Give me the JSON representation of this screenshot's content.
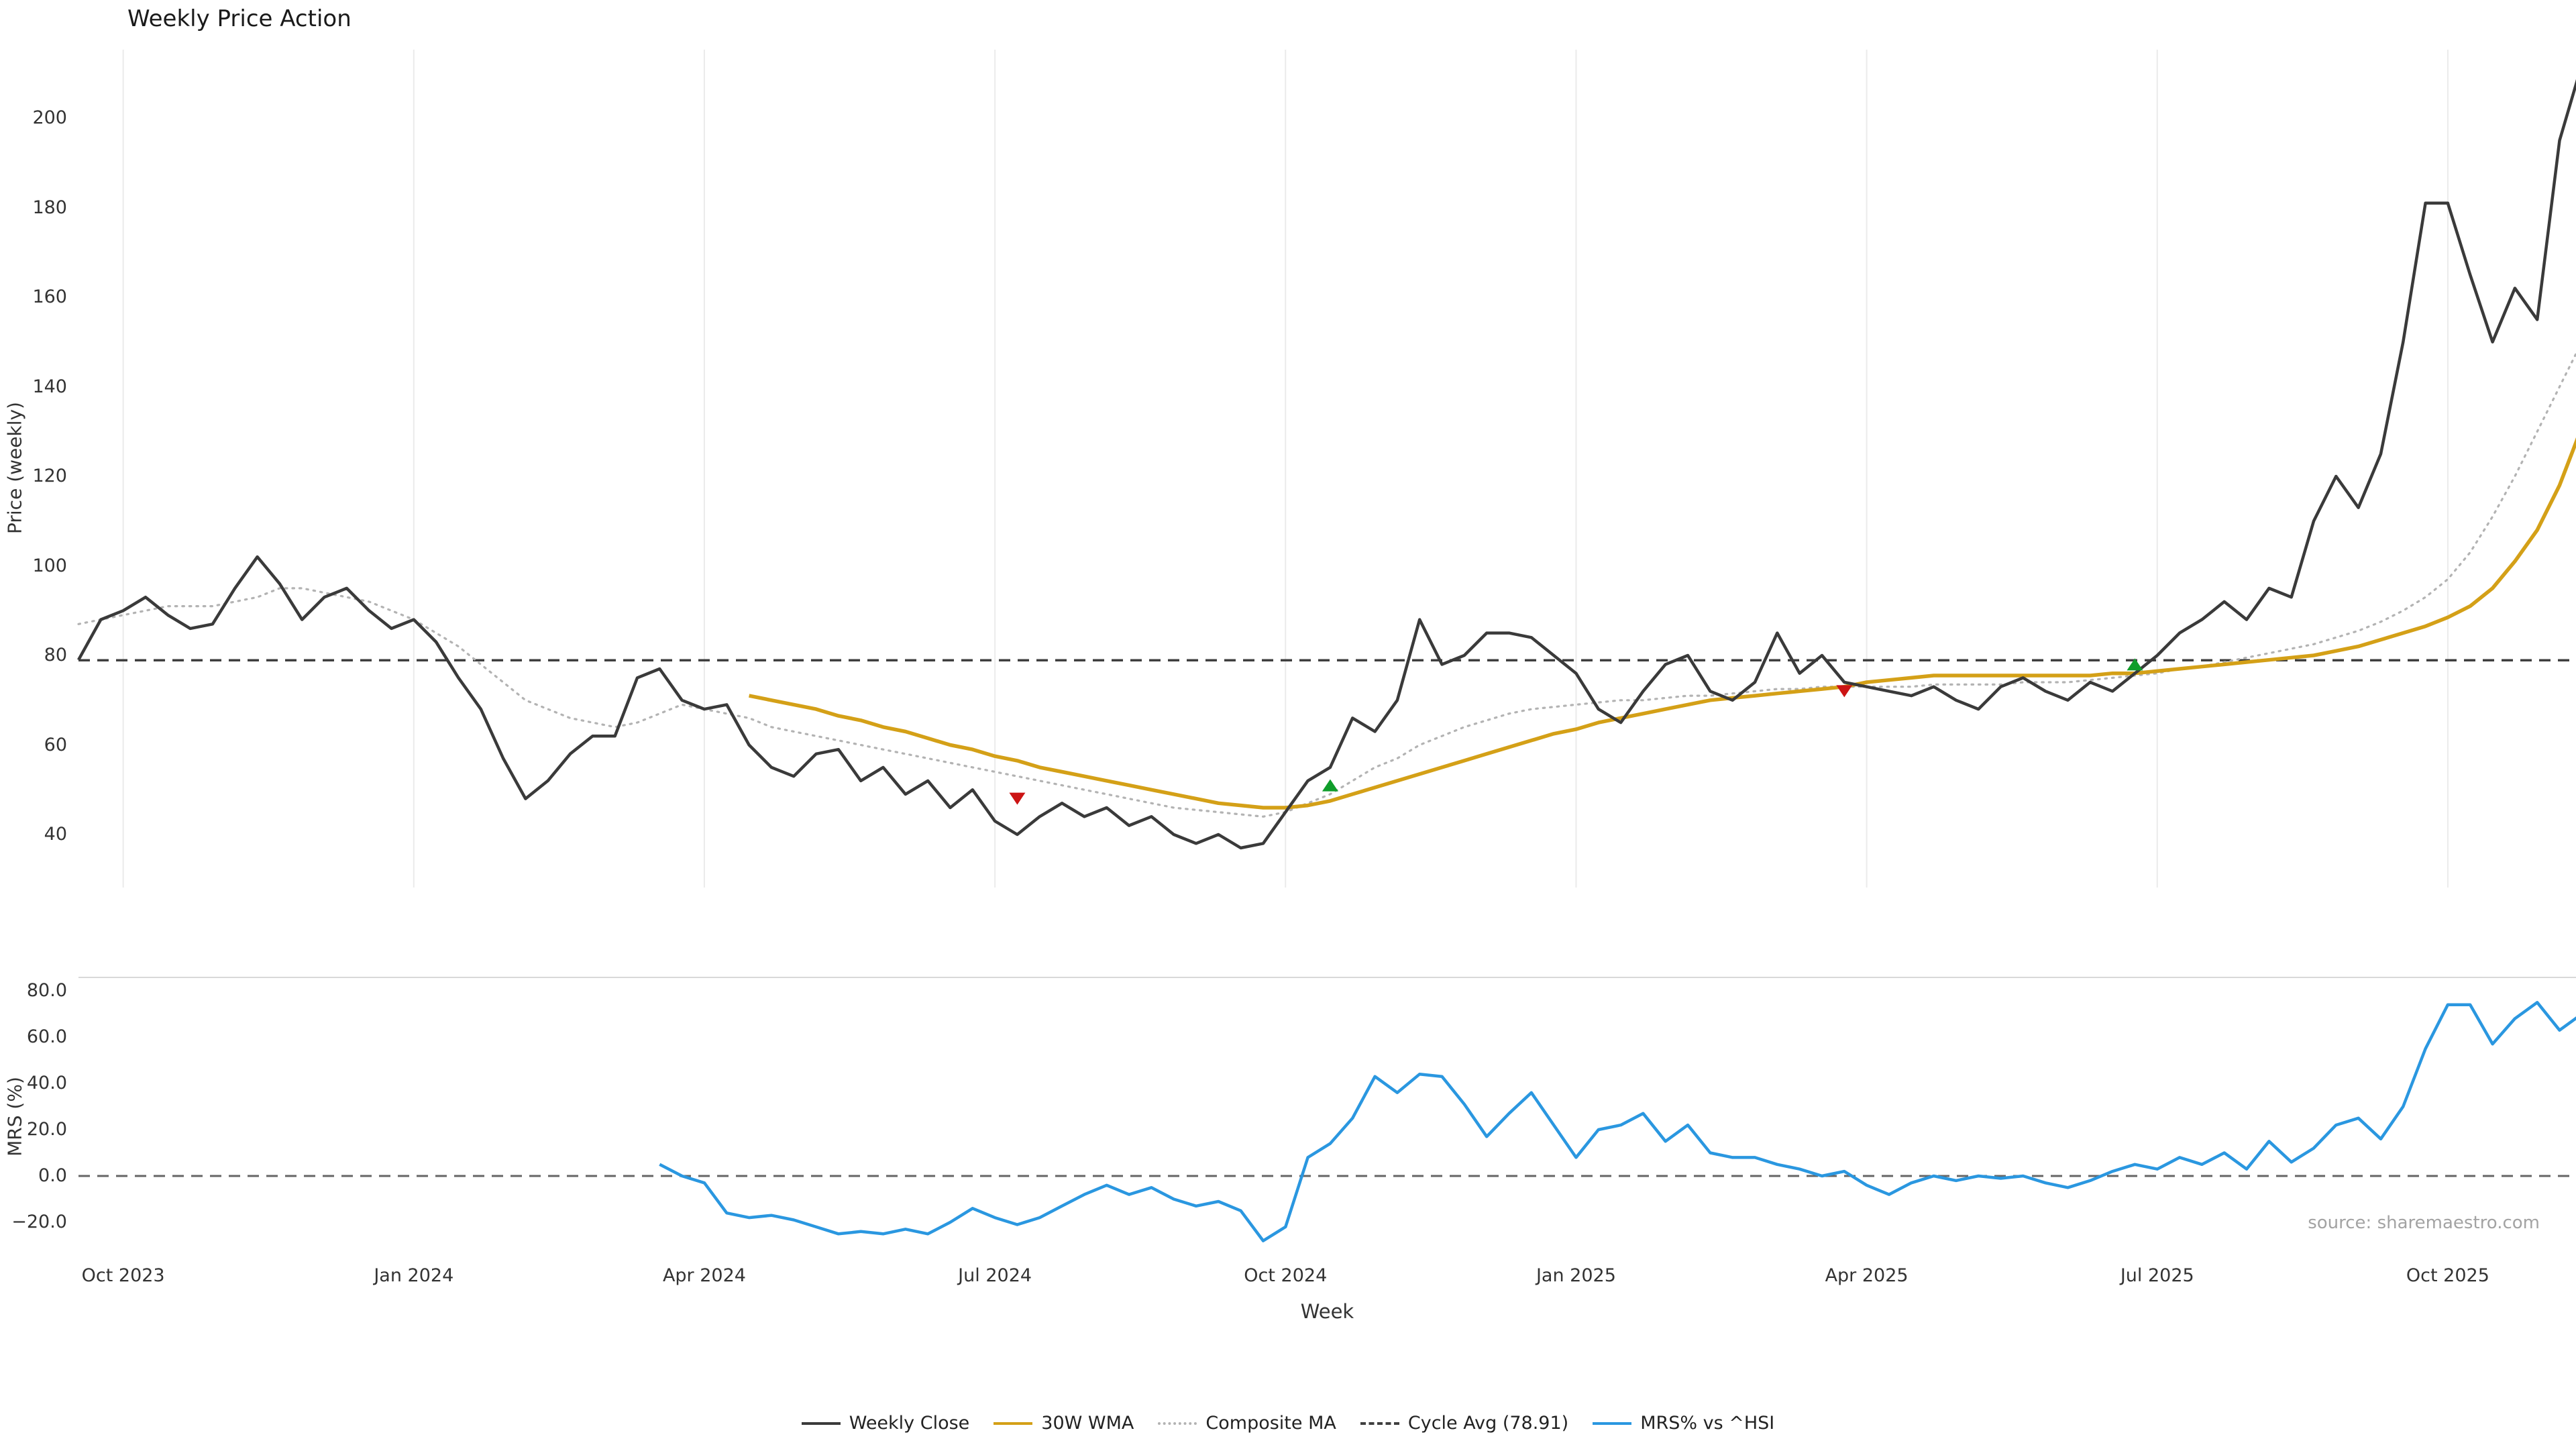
{
  "title": "Weekly Price Action",
  "source": "source: sharemaestro.com",
  "colors": {
    "weekly_close": "#3a3a3a",
    "wma_30w": "#d4a017",
    "composite_ma": "#b3b3b3",
    "cycle_avg": "#3f3f3f",
    "mrs": "#2a97e0",
    "buy_marker": "#0f9d2a",
    "sell_marker": "#cc1414",
    "grid": "#ebebeb",
    "spine": "#d8d8d8",
    "zero_line": "#666666"
  },
  "legend": [
    {
      "label": "Weekly Close",
      "style": "solid",
      "color_key": "weekly_close"
    },
    {
      "label": "30W WMA",
      "style": "solid",
      "color_key": "wma_30w"
    },
    {
      "label": "Composite MA",
      "style": "dotted",
      "color_key": "composite_ma"
    },
    {
      "label": "Cycle Avg (78.91)",
      "style": "dashed",
      "color_key": "cycle_avg"
    },
    {
      "label": "MRS% vs ^HSI",
      "style": "solid",
      "color_key": "mrs"
    }
  ],
  "x_axis": {
    "label": "Week",
    "tick_labels": [
      "Oct 2023",
      "Jan 2024",
      "Apr 2024",
      "Jul 2024",
      "Oct 2024",
      "Jan 2025",
      "Apr 2025",
      "Jul 2025",
      "Oct 2025"
    ],
    "tick_weeks": [
      2,
      15,
      28,
      41,
      54,
      67,
      80,
      93,
      106
    ],
    "week_range": [
      0,
      112
    ]
  },
  "chart_data": [
    {
      "type": "line",
      "panel": "price",
      "title": "Weekly Price Action",
      "ylabel": "Price (weekly)",
      "ylim": [
        28,
        215
      ],
      "yticks": [
        200,
        180,
        160,
        140,
        120,
        100,
        80,
        60,
        40
      ],
      "ytick_labels": [
        "200",
        "180",
        "160",
        "140",
        "120",
        "100",
        "80",
        "60",
        "40"
      ],
      "grid": "vertical",
      "cycle_avg": 78.91,
      "series": [
        {
          "name": "Weekly Close",
          "start_week": 0,
          "color_key": "weekly_close",
          "style": "solid",
          "values": [
            79,
            88,
            90,
            93,
            89,
            86,
            87,
            95,
            102,
            96,
            88,
            93,
            95,
            90,
            86,
            88,
            83,
            75,
            68,
            57,
            48,
            52,
            58,
            62,
            62,
            75,
            77,
            70,
            68,
            69,
            60,
            55,
            53,
            58,
            59,
            52,
            55,
            49,
            52,
            46,
            50,
            43,
            40,
            44,
            47,
            44,
            46,
            42,
            44,
            40,
            38,
            40,
            37,
            38,
            45,
            52,
            55,
            66,
            63,
            70,
            88,
            78,
            80,
            85,
            85,
            84,
            80,
            76,
            68,
            65,
            72,
            78,
            80,
            72,
            70,
            74,
            85,
            76,
            80,
            74,
            73,
            72,
            71,
            73,
            70,
            68,
            73,
            75,
            72,
            70,
            74,
            72,
            76,
            80,
            85,
            88,
            92,
            88,
            95,
            93,
            110,
            120,
            113,
            125,
            150,
            181,
            181,
            165,
            150,
            162,
            155,
            195,
            212
          ]
        },
        {
          "name": "30W WMA",
          "start_week": 30,
          "color_key": "wma_30w",
          "style": "solid",
          "values": [
            71,
            70,
            69,
            68,
            66.5,
            65.5,
            64,
            63,
            61.5,
            60,
            59,
            57.5,
            56.5,
            55,
            54,
            53,
            52,
            51,
            50,
            49,
            48,
            47,
            46.5,
            46,
            46,
            46.5,
            47.5,
            49,
            50.5,
            52,
            53.5,
            55,
            56.5,
            58,
            59.5,
            61,
            62.5,
            63.5,
            65,
            66,
            67,
            68,
            69,
            70,
            70.5,
            71,
            71.5,
            72,
            72.5,
            73,
            74,
            74.5,
            75,
            75.5,
            75.5,
            75.5,
            75.5,
            75.5,
            75.5,
            75.5,
            75.5,
            76,
            76,
            76.5,
            77,
            77.5,
            78,
            78.5,
            79,
            79.5,
            80,
            81,
            82,
            83.5,
            85,
            86.5,
            88.5,
            91,
            95,
            101,
            108,
            118,
            131
          ]
        },
        {
          "name": "Composite MA",
          "start_week": 0,
          "color_key": "composite_ma",
          "style": "dotted",
          "values": [
            87,
            88,
            89,
            90,
            91,
            91,
            91,
            92,
            93,
            95,
            95,
            94,
            93,
            92,
            90,
            88,
            85,
            82,
            78,
            74,
            70,
            68,
            66,
            65,
            64,
            65,
            67,
            69,
            68,
            67,
            66,
            64,
            63,
            62,
            61,
            60,
            59,
            58,
            57,
            56,
            55,
            54,
            53,
            52,
            51,
            50,
            49,
            48,
            47,
            46,
            45.5,
            45,
            44.5,
            44,
            45,
            47,
            49,
            52,
            55,
            57,
            60,
            62,
            64,
            65.5,
            67,
            68,
            68.5,
            69,
            69.5,
            70,
            70,
            70.5,
            71,
            71,
            71.5,
            72,
            72.5,
            72.5,
            73,
            73,
            73,
            73,
            73,
            73.5,
            73.5,
            73.5,
            73.5,
            74,
            74,
            74,
            74.5,
            75,
            75.5,
            76,
            77,
            77.5,
            78.5,
            79.5,
            80.5,
            81.5,
            82.5,
            84,
            85.5,
            87.5,
            90,
            93,
            97,
            103,
            111,
            120,
            130,
            140,
            150
          ]
        }
      ],
      "signal_markers": [
        {
          "week": 42,
          "value": 48,
          "type": "sell"
        },
        {
          "week": 56,
          "value": 51,
          "type": "buy"
        },
        {
          "week": 79,
          "value": 72,
          "type": "sell"
        },
        {
          "week": 92,
          "value": 78,
          "type": "buy"
        }
      ]
    },
    {
      "type": "line",
      "panel": "mrs",
      "ylabel": "MRS (%)",
      "ylim": [
        -35,
        86
      ],
      "yticks": [
        80,
        60,
        40,
        20,
        0,
        -20
      ],
      "ytick_labels": [
        "80.0",
        "60.0",
        "40.0",
        "20.0",
        "0.0",
        "−20.0"
      ],
      "zero_line": 0,
      "series": [
        {
          "name": "MRS% vs ^HSI",
          "start_week": 26,
          "color_key": "mrs",
          "style": "solid",
          "values": [
            5,
            0,
            -3,
            -16,
            -18,
            -17,
            -19,
            -22,
            -25,
            -24,
            -25,
            -23,
            -25,
            -20,
            -14,
            -18,
            -21,
            -18,
            -13,
            -8,
            -4,
            -8,
            -5,
            -10,
            -13,
            -11,
            -15,
            -28,
            -22,
            8,
            14,
            25,
            43,
            36,
            44,
            43,
            31,
            17,
            27,
            36,
            22,
            8,
            20,
            22,
            27,
            15,
            22,
            10,
            8,
            8,
            5,
            3,
            0,
            2,
            -4,
            -8,
            -3,
            0,
            -2,
            0,
            -1,
            0,
            -3,
            -5,
            -2,
            2,
            5,
            3,
            8,
            5,
            10,
            3,
            15,
            6,
            12,
            22,
            25,
            16,
            30,
            55,
            74,
            74,
            57,
            68,
            75,
            63,
            70
          ]
        }
      ]
    }
  ]
}
